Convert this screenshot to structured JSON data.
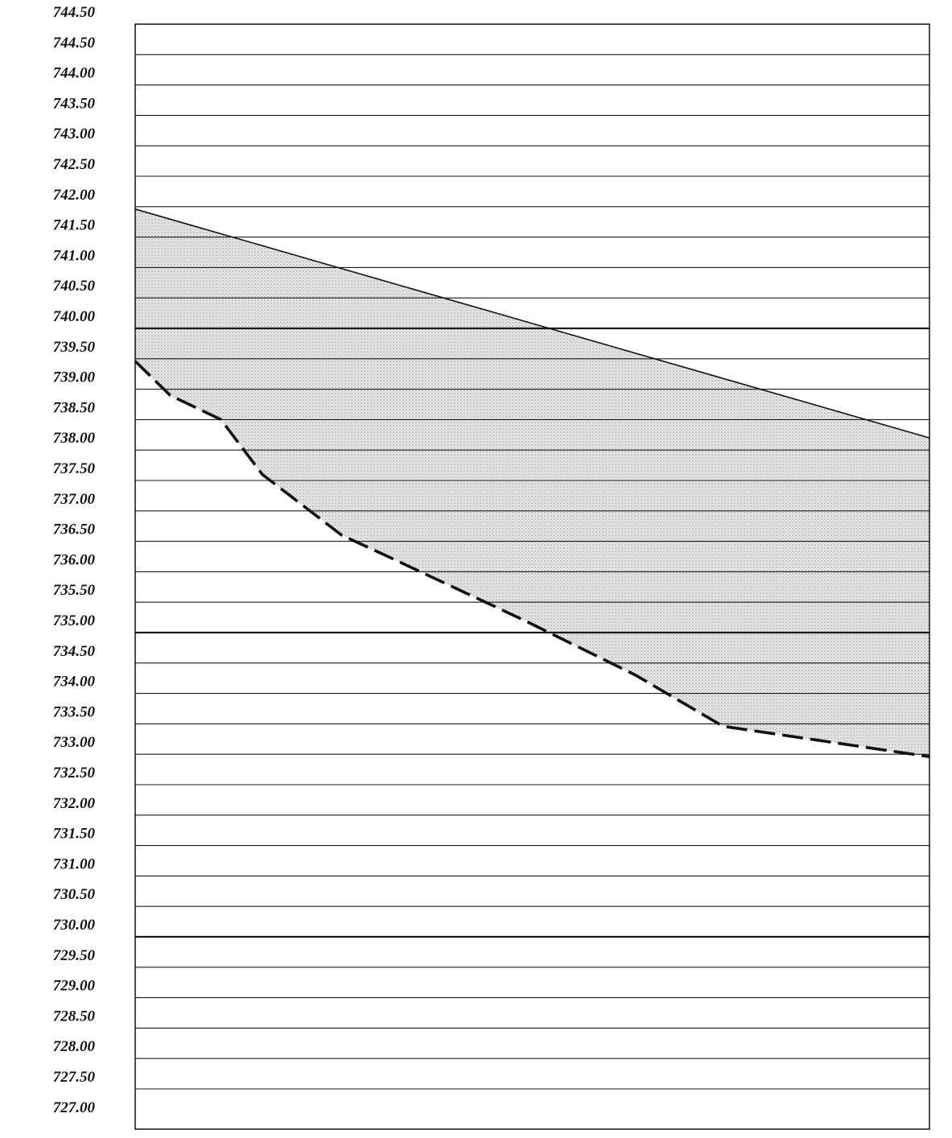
{
  "chart_data": {
    "type": "area",
    "title": "",
    "xlabel": "",
    "ylabel": "",
    "ylim": [
      727.0,
      744.5
    ],
    "y_ticks": [
      "744.50",
      "744.50",
      "744.00",
      "743.50",
      "743.00",
      "742.50",
      "742.00",
      "741.50",
      "741.00",
      "740.50",
      "740.00",
      "739.50",
      "739.00",
      "738.50",
      "738.00",
      "737.50",
      "737.00",
      "736.50",
      "736.00",
      "735.50",
      "735.00",
      "734.50",
      "734.00",
      "733.50",
      "733.00",
      "732.50",
      "732.00",
      "731.50",
      "731.00",
      "730.50",
      "730.00",
      "729.50",
      "729.00",
      "728.50",
      "728.00",
      "727.50",
      "727.00"
    ],
    "major_gridlines": [
      740.0,
      735.0,
      730.0
    ],
    "grid": true,
    "legend": "none",
    "xlim": [
      0,
      100
    ],
    "series": [
      {
        "style": "solid",
        "color": "#111111",
        "x": [
          0,
          100
        ],
        "y": [
          741.96,
          738.2
        ]
      },
      {
        "style": "dashed",
        "color": "#111111",
        "x": [
          0,
          4.4,
          10.8,
          16.0,
          26.0,
          31.0,
          49.0,
          63.0,
          74.0,
          100
        ],
        "y": [
          739.46,
          738.9,
          738.5,
          737.6,
          736.6,
          736.3,
          735.2,
          734.3,
          733.46,
          732.96
        ]
      }
    ],
    "fill_between": {
      "series": [
        0,
        1
      ],
      "color": "#d6d6d6",
      "pattern": "dotted"
    }
  }
}
